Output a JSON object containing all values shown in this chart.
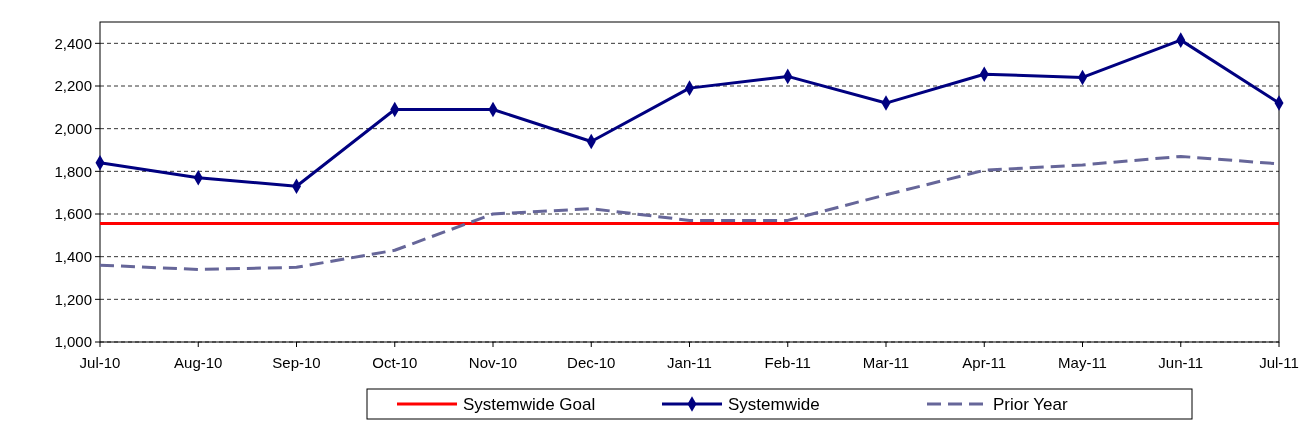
{
  "chart_data": {
    "type": "line",
    "categories": [
      "Jul-10",
      "Aug-10",
      "Sep-10",
      "Oct-10",
      "Nov-10",
      "Dec-10",
      "Jan-11",
      "Feb-11",
      "Mar-11",
      "Apr-11",
      "May-11",
      "Jun-11",
      "Jul-11"
    ],
    "series": [
      {
        "name": "Systemwide Goal",
        "color": "#ff0000",
        "line_style": "solid",
        "marker": "none",
        "values": [
          1555,
          1555,
          1555,
          1555,
          1555,
          1555,
          1555,
          1555,
          1555,
          1555,
          1555,
          1555,
          1555
        ]
      },
      {
        "name": "Systemwide",
        "color": "#000080",
        "line_style": "solid",
        "marker": "diamond",
        "values": [
          1840,
          1770,
          1730,
          2090,
          2090,
          1940,
          2190,
          2245,
          2120,
          2255,
          2240,
          2415,
          2120
        ]
      },
      {
        "name": "Prior Year",
        "color": "#666699",
        "line_style": "dashed",
        "marker": "none",
        "values": [
          1360,
          1340,
          1350,
          1430,
          1600,
          1625,
          1570,
          1570,
          1690,
          1805,
          1830,
          1870,
          1835
        ]
      }
    ],
    "ylim": [
      1000,
      2500
    ],
    "yticks": [
      {
        "value": 1000,
        "label": "1,000"
      },
      {
        "value": 1200,
        "label": "1,200"
      },
      {
        "value": 1400,
        "label": "1,400"
      },
      {
        "value": 1600,
        "label": "1,600"
      },
      {
        "value": 1800,
        "label": "1,800"
      },
      {
        "value": 2000,
        "label": "2,000"
      },
      {
        "value": 2200,
        "label": "2,200"
      },
      {
        "value": 2400,
        "label": "2,400"
      }
    ],
    "grid": "y",
    "legend": "bottom"
  }
}
